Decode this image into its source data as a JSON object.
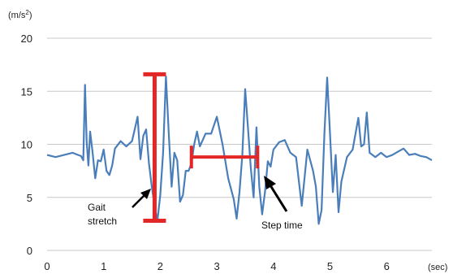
{
  "chart_data": {
    "type": "line",
    "y_unit": "(m/s²)",
    "x_unit": "(sec)",
    "xlim": [
      0,
      6.8
    ],
    "ylim": [
      0,
      20
    ],
    "x_ticks": [
      "0",
      "1",
      "2",
      "3",
      "4",
      "5",
      "6"
    ],
    "y_ticks": [
      "0",
      "5",
      "10",
      "15",
      "20"
    ],
    "grid": "horizontal",
    "colors": {
      "series": "#4a7ebb",
      "marker": "#e32626",
      "arrow": "#000000",
      "grid": "#c8c8c8"
    },
    "series": [
      {
        "x": [
          0.0,
          0.15,
          0.3,
          0.45,
          0.55,
          0.6,
          0.64,
          0.67,
          0.7,
          0.73,
          0.76,
          0.8,
          0.85,
          0.9,
          0.95,
          1.0,
          1.05,
          1.1,
          1.15,
          1.2,
          1.3,
          1.4,
          1.5,
          1.6,
          1.65,
          1.7,
          1.75,
          1.8,
          1.85,
          1.9,
          1.95,
          2.0,
          2.05,
          2.1,
          2.15,
          2.2,
          2.25,
          2.3,
          2.35,
          2.4,
          2.45,
          2.5,
          2.55,
          2.6,
          2.65,
          2.7,
          2.75,
          2.8,
          2.9,
          3.0,
          3.1,
          3.2,
          3.3,
          3.35,
          3.4,
          3.45,
          3.5,
          3.55,
          3.6,
          3.65,
          3.7,
          3.75,
          3.8,
          3.85,
          3.9,
          3.95,
          4.0,
          4.1,
          4.2,
          4.3,
          4.4,
          4.5,
          4.6,
          4.7,
          4.75,
          4.8,
          4.85,
          4.9,
          4.95,
          5.0,
          5.05,
          5.1,
          5.15,
          5.2,
          5.3,
          5.4,
          5.5,
          5.55,
          5.6,
          5.65,
          5.7,
          5.8,
          5.9,
          6.0,
          6.1,
          6.2,
          6.3,
          6.4,
          6.5,
          6.6,
          6.7,
          6.8
        ],
        "values": [
          9.0,
          8.8,
          9.0,
          9.2,
          9.0,
          8.9,
          8.5,
          15.6,
          10.2,
          8.0,
          11.2,
          9.4,
          6.8,
          8.5,
          8.4,
          9.5,
          7.5,
          7.1,
          8.0,
          9.6,
          10.3,
          9.8,
          10.3,
          12.6,
          8.6,
          10.8,
          11.4,
          8.2,
          6.0,
          4.2,
          2.8,
          5.2,
          9.2,
          16.4,
          11.0,
          6.0,
          9.2,
          8.5,
          4.6,
          5.2,
          7.5,
          7.5,
          8.2,
          10.0,
          11.2,
          9.8,
          10.4,
          11.0,
          11.0,
          12.6,
          10.0,
          6.8,
          4.8,
          3.0,
          5.5,
          9.0,
          15.2,
          11.5,
          7.8,
          5.0,
          11.6,
          6.0,
          3.4,
          5.5,
          8.4,
          7.9,
          9.5,
          10.2,
          10.4,
          9.2,
          8.8,
          4.2,
          9.5,
          7.5,
          6.0,
          2.5,
          3.8,
          11.0,
          16.3,
          11.0,
          5.5,
          9.0,
          3.6,
          6.5,
          8.8,
          9.5,
          12.5,
          9.8,
          10.0,
          13.0,
          9.2,
          8.8,
          9.2,
          8.8,
          9.0,
          9.3,
          9.6,
          9.0,
          9.1,
          8.9,
          8.8,
          8.5
        ]
      }
    ],
    "annotations": {
      "gait_stretch": {
        "label_line1": "Gait",
        "label_line2": "stretch",
        "x": 1.9,
        "y_from": 2.8,
        "y_to": 16.6
      },
      "step_time": {
        "label": "Step time",
        "x_from": 2.55,
        "x_to": 3.72,
        "y": 8.8
      }
    }
  }
}
